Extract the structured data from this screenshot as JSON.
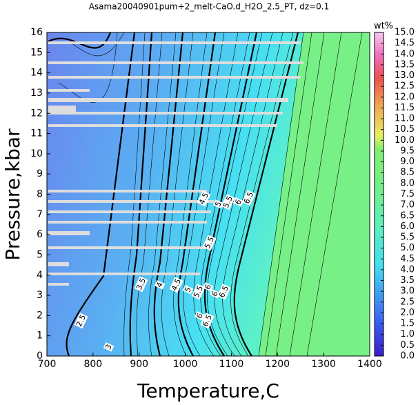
{
  "chart_data": {
    "type": "contour",
    "title": "Asama20040901pum+2_melt-CaO.d_H2O_2.5_PT, dz=0.1",
    "x_label": "Temperature,C",
    "y_label": "Pressure,kbar",
    "xlim": [
      700,
      1400
    ],
    "xticks": [
      700,
      800,
      900,
      1000,
      1100,
      1200,
      1300,
      1400
    ],
    "ylim": [
      0,
      16
    ],
    "yticks": [
      0,
      1,
      2,
      3,
      4,
      5,
      6,
      7,
      8,
      9,
      10,
      11,
      12,
      13,
      14,
      15,
      16
    ],
    "colorbar_label": "wt%",
    "colorbar_lim": [
      0,
      15
    ],
    "colorbar_ticks": [
      {
        "value": 0,
        "label": "0.0"
      },
      {
        "value": 0.5,
        "label": "0.5"
      },
      {
        "value": 1,
        "label": "1.0"
      },
      {
        "value": 1.5,
        "label": "1.5"
      },
      {
        "value": 2,
        "label": "2.0"
      },
      {
        "value": 2.5,
        "label": "2.5"
      },
      {
        "value": 3,
        "label": "3.0"
      },
      {
        "value": 3.5,
        "label": "3.5"
      },
      {
        "value": 4,
        "label": "4.0"
      },
      {
        "value": 4.5,
        "label": "4.5"
      },
      {
        "value": 5,
        "label": "5.0"
      },
      {
        "value": 5.5,
        "label": "5.5"
      },
      {
        "value": 6,
        "label": "6.0"
      },
      {
        "value": 6.5,
        "label": "6.5"
      },
      {
        "value": 7,
        "label": "7.0"
      },
      {
        "value": 7.5,
        "label": "7.5"
      },
      {
        "value": 8,
        "label": "8.0"
      },
      {
        "value": 8.5,
        "label": "8.5"
      },
      {
        "value": 9,
        "label": "9.0"
      },
      {
        "value": 9.5,
        "label": "9.5"
      },
      {
        "value": 10,
        "label": "10.0"
      },
      {
        "value": 10.5,
        "label": "10.5"
      },
      {
        "value": 11,
        "label": "11.0"
      },
      {
        "value": 11.5,
        "label": "11.5"
      },
      {
        "value": 12,
        "label": "12.0"
      },
      {
        "value": 12.5,
        "label": "12.5"
      },
      {
        "value": 13,
        "label": "13.0"
      },
      {
        "value": 13.5,
        "label": "13.5"
      },
      {
        "value": 14,
        "label": "14.0"
      },
      {
        "value": 14.5,
        "label": "14.5"
      },
      {
        "value": 15,
        "label": "15.0"
      }
    ],
    "contour_labels": [
      4.5,
      5,
      5.5,
      6,
      6.5,
      5.5,
      6,
      6,
      6.5,
      3.5,
      4,
      4.5,
      5,
      5.5,
      6,
      6.5,
      2.5,
      3
    ]
  }
}
